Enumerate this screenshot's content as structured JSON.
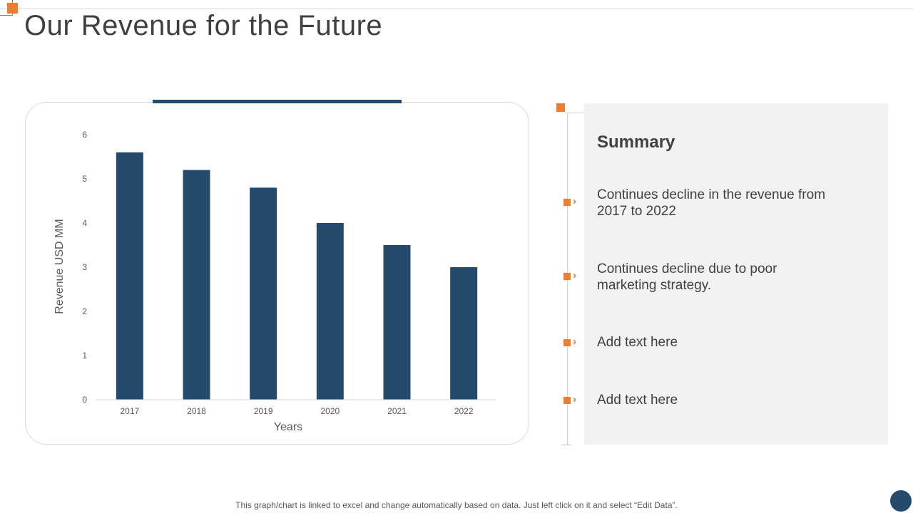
{
  "title": "Our Revenue for the Future",
  "colors": {
    "accent": "#ed7d31",
    "bar": "#264a6b",
    "panel": "#f2f2f2",
    "text": "#404040"
  },
  "chart_data": {
    "type": "bar",
    "categories": [
      "2017",
      "2018",
      "2019",
      "2020",
      "2021",
      "2022"
    ],
    "values": [
      5.6,
      5.2,
      4.8,
      4.0,
      3.5,
      3.0
    ],
    "ylim": [
      0,
      6
    ],
    "yticks": [
      "0",
      "1",
      "2",
      "3",
      "4",
      "5",
      "6"
    ],
    "xlabel": "Years",
    "ylabel": "Revenue  USD MM",
    "legend": "none",
    "grid": false
  },
  "summary": {
    "title": "Summary",
    "items": [
      {
        "text": "Continues decline in the revenue from 2017 to 2022"
      },
      {
        "text": "Continues decline due to poor marketing strategy."
      },
      {
        "text": "Add text here"
      },
      {
        "text": "Add text here"
      }
    ]
  },
  "footnote": "This graph/chart is linked to excel and change automatically based on data. Just left click on it and select “Edit Data”."
}
